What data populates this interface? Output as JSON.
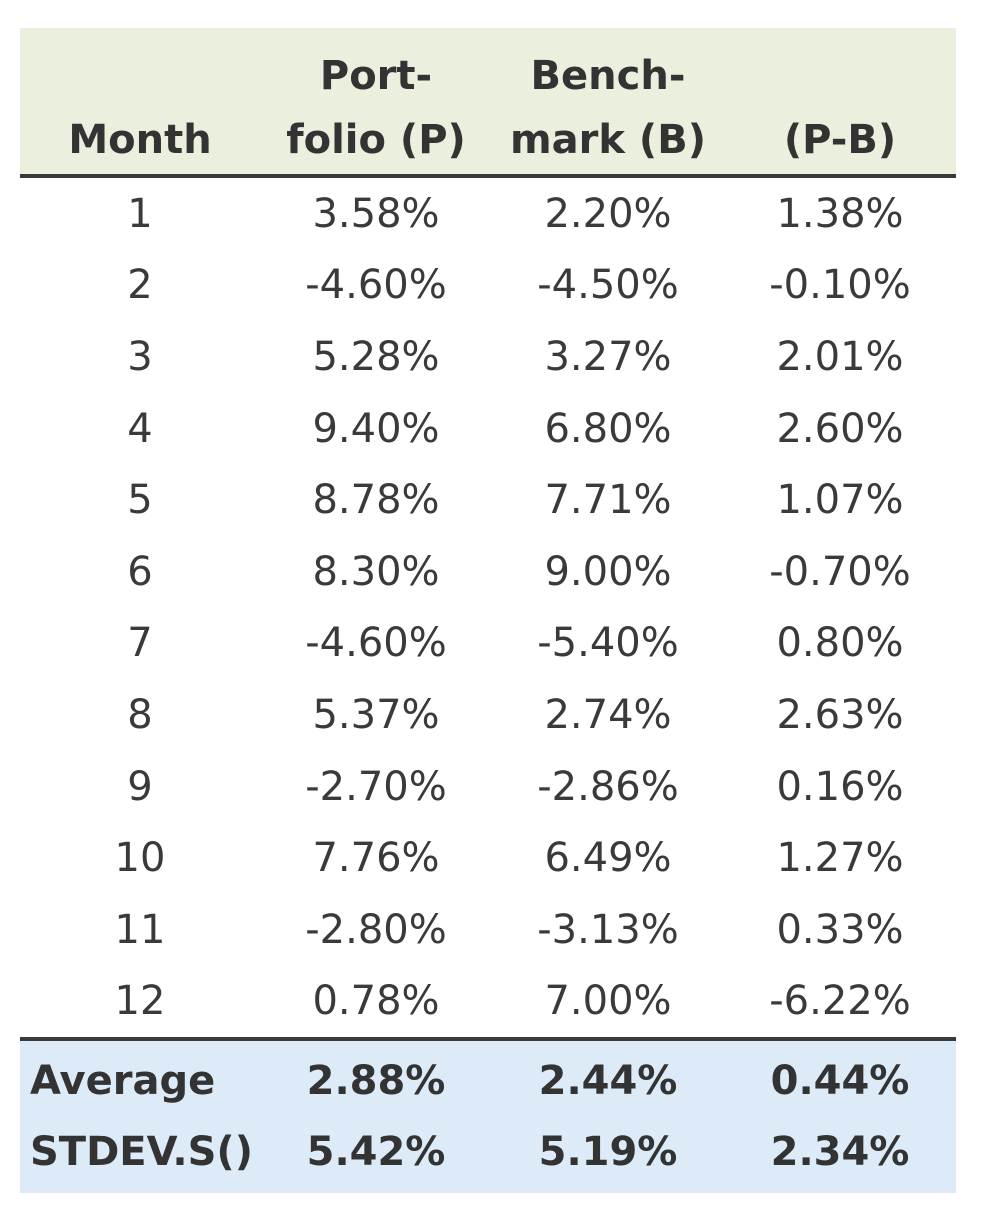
{
  "table": {
    "headers": {
      "month": "Month",
      "portfolio_line1": "Port-",
      "portfolio_line2": "folio (P)",
      "benchmark_line1": "Bench-",
      "benchmark_line2": "mark (B)",
      "diff": "(P-B)"
    },
    "rows": [
      {
        "month": "1",
        "p": "3.58%",
        "b": "2.20%",
        "d": "1.38%"
      },
      {
        "month": "2",
        "p": "-4.60%",
        "b": "-4.50%",
        "d": "-0.10%"
      },
      {
        "month": "3",
        "p": "5.28%",
        "b": "3.27%",
        "d": "2.01%"
      },
      {
        "month": "4",
        "p": "9.40%",
        "b": "6.80%",
        "d": "2.60%"
      },
      {
        "month": "5",
        "p": "8.78%",
        "b": "7.71%",
        "d": "1.07%"
      },
      {
        "month": "6",
        "p": "8.30%",
        "b": "9.00%",
        "d": "-0.70%"
      },
      {
        "month": "7",
        "p": "-4.60%",
        "b": "-5.40%",
        "d": "0.80%"
      },
      {
        "month": "8",
        "p": "5.37%",
        "b": "2.74%",
        "d": "2.63%"
      },
      {
        "month": "9",
        "p": "-2.70%",
        "b": "-2.86%",
        "d": "0.16%"
      },
      {
        "month": "10",
        "p": "7.76%",
        "b": "6.49%",
        "d": "1.27%"
      },
      {
        "month": "11",
        "p": "-2.80%",
        "b": "-3.13%",
        "d": "0.33%"
      },
      {
        "month": "12",
        "p": "0.78%",
        "b": "7.00%",
        "d": "-6.22%"
      }
    ],
    "summary": [
      {
        "label": "Average",
        "p": "2.88%",
        "b": "2.44%",
        "d": "0.44%"
      },
      {
        "label": "STDEV.S()",
        "p": "5.42%",
        "b": "5.19%",
        "d": "2.34%"
      }
    ],
    "colors": {
      "header_bg": "#eaf0dd",
      "summary_bg": "#dcebf7",
      "rule": "#3a3a3a"
    }
  }
}
